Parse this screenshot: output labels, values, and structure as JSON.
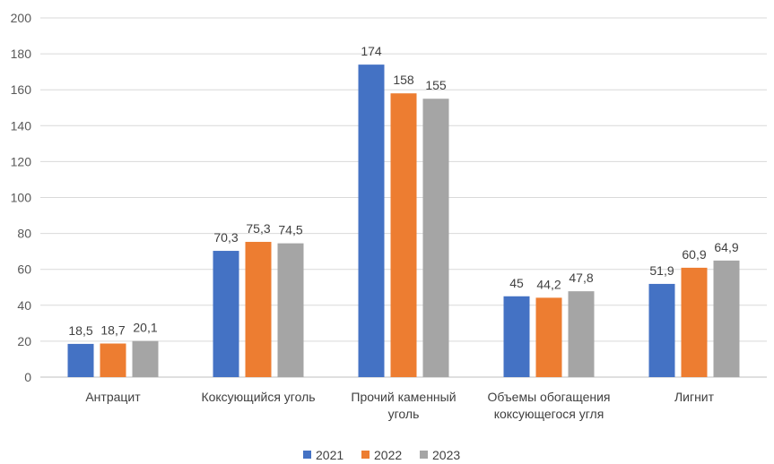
{
  "chart_data": {
    "type": "bar",
    "title": "",
    "xlabel": "",
    "ylabel": "",
    "ylim": [
      0,
      200
    ],
    "yticks": [
      0,
      20,
      40,
      60,
      80,
      100,
      120,
      140,
      160,
      180,
      200
    ],
    "grid": true,
    "legend_position": "bottom",
    "categories": [
      [
        "Антрацит"
      ],
      [
        "Коксующийся уголь"
      ],
      [
        "Прочий каменный",
        "уголь"
      ],
      [
        "Объемы обогащения",
        "коксующегося угля"
      ],
      [
        "Лигнит"
      ]
    ],
    "series": [
      {
        "name": "2021",
        "color": "#4472C4",
        "values": [
          18.5,
          70.3,
          174,
          45,
          51.9
        ],
        "labels": [
          "18,5",
          "70,3",
          "174",
          "45",
          "51,9"
        ]
      },
      {
        "name": "2022",
        "color": "#ED7D31",
        "values": [
          18.7,
          75.3,
          158,
          44.2,
          60.9
        ],
        "labels": [
          "18,7",
          "75,3",
          "158",
          "44,2",
          "60,9"
        ]
      },
      {
        "name": "2023",
        "color": "#A5A5A5",
        "values": [
          20.1,
          74.5,
          155,
          47.8,
          64.9
        ],
        "labels": [
          "20,1",
          "74,5",
          "155",
          "47,8",
          "64,9"
        ]
      }
    ]
  }
}
